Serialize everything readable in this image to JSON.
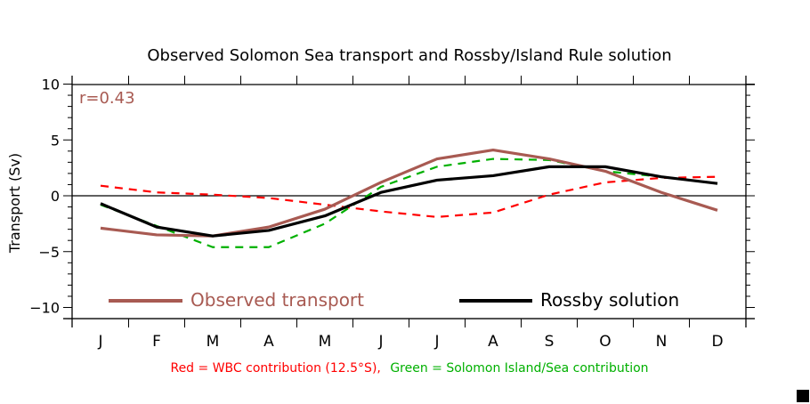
{
  "chart_data": {
    "type": "line",
    "title": "Observed Solomon Sea transport and Rossby/Island Rule solution",
    "ylabel": "Transport (Sv)",
    "xlabel": "",
    "ylim": [
      -11,
      10
    ],
    "yticks": [
      10,
      5,
      0,
      -5,
      -10
    ],
    "ytick_labels": [
      "10",
      "5",
      "0",
      "−5",
      "−10"
    ],
    "categories": [
      "J",
      "F",
      "M",
      "A",
      "M",
      "J",
      "J",
      "A",
      "S",
      "O",
      "N",
      "D"
    ],
    "annotation": "r=0.43",
    "footnote_red": "Red = WBC contribution (12.5°S),",
    "footnote_green": "Green = Solomon Island/Sea contribution",
    "legend_placement": "bottom",
    "series": [
      {
        "name": "Observed transport",
        "style": "solid",
        "color": "#a85a52",
        "in_legend": true,
        "values": [
          -2.9,
          -3.5,
          -3.6,
          -2.8,
          -1.2,
          1.2,
          3.3,
          4.1,
          3.3,
          2.2,
          0.3,
          -1.3
        ]
      },
      {
        "name": "Rossby solution",
        "style": "solid",
        "color": "#000000",
        "in_legend": true,
        "values": [
          -0.7,
          -2.8,
          -3.6,
          -3.1,
          -1.8,
          0.3,
          1.4,
          1.8,
          2.6,
          2.6,
          1.7,
          1.1
        ]
      },
      {
        "name": "WBC contribution (12.5°S)",
        "style": "dashed",
        "color": "#ff0000",
        "in_legend": false,
        "values": [
          0.9,
          0.3,
          0.1,
          -0.2,
          -0.8,
          -1.4,
          -1.9,
          -1.5,
          0.1,
          1.2,
          1.6,
          1.7
        ]
      },
      {
        "name": "Solomon Island/Sea contribution",
        "style": "dashed",
        "color": "#00b000",
        "in_legend": false,
        "values": [
          -0.8,
          -2.7,
          -4.6,
          -4.6,
          -2.5,
          0.8,
          2.6,
          3.3,
          3.2,
          2.2,
          1.7,
          1.1
        ]
      }
    ]
  }
}
